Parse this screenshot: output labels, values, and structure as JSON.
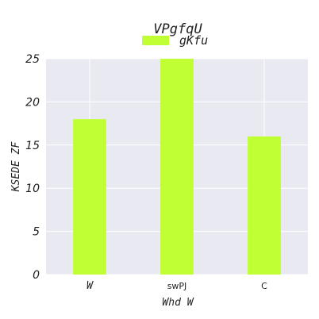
{
  "chart_data": {
    "type": "bar",
    "title": "VPgfqU",
    "categories": [
      "W",
      "swPJ",
      "C"
    ],
    "series": [
      {
        "name": "gKfu",
        "values": [
          18,
          25,
          16
        ],
        "color": "#bfff33"
      }
    ],
    "xlabel": "Whd W",
    "ylabel": "KSEDE ZF",
    "ylim": [
      0,
      25
    ],
    "yticks": [
      "0",
      "5",
      "10",
      "15",
      "20",
      "25"
    ],
    "grid": true,
    "legend_position": "top-center",
    "background_color": "#e9e9f2"
  }
}
